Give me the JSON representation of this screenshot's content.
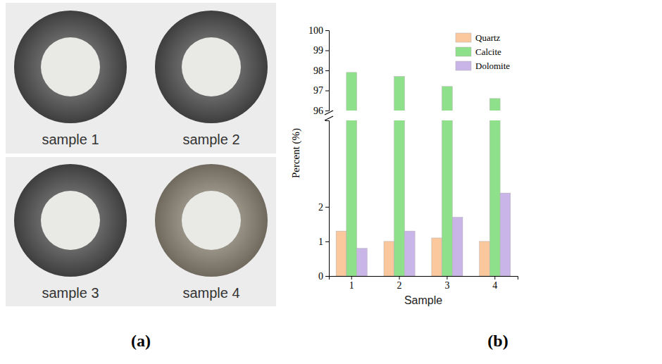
{
  "chart_data": {
    "type": "bar",
    "categories": [
      "1",
      "2",
      "3",
      "4"
    ],
    "series": [
      {
        "name": "Quartz",
        "color": "#fbc79d",
        "values": [
          1.3,
          1.0,
          1.1,
          1.0
        ]
      },
      {
        "name": "Calcite",
        "color": "#8fe08a",
        "values": [
          97.9,
          97.7,
          97.2,
          96.6
        ]
      },
      {
        "name": "Dolomite",
        "color": "#c9b5e8",
        "values": [
          0.8,
          1.3,
          1.7,
          2.4
        ]
      }
    ],
    "x_label": "Sample",
    "y_label": "Percent (%)",
    "ylim": [
      0,
      100
    ],
    "yticks": [
      0,
      1,
      2,
      96,
      97,
      98,
      99,
      100
    ],
    "y_break": [
      4.5,
      96
    ],
    "legend": "upper right"
  },
  "panels": [
    {
      "letter": "(a)",
      "labels": [
        "sample 1",
        "sample 2",
        "sample 3",
        "sample 4"
      ]
    },
    {
      "letter": "(b)"
    }
  ]
}
